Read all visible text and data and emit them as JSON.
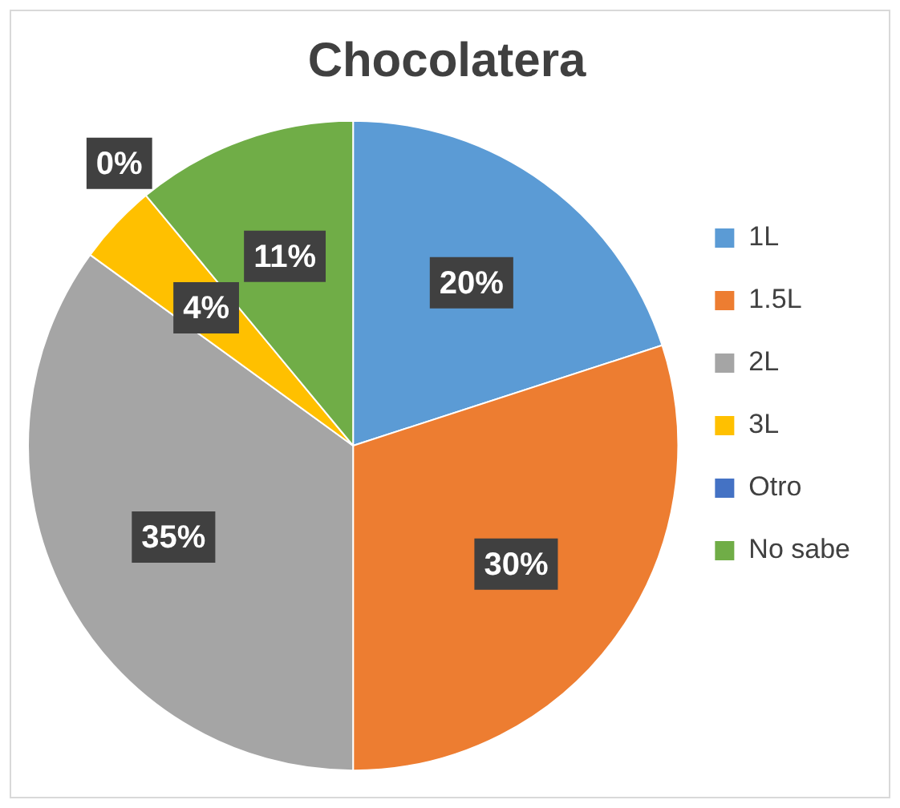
{
  "chart_data": {
    "type": "pie",
    "title": "Chocolatera",
    "categories": [
      "1L",
      "1.5L",
      "2L",
      "3L",
      "Otro",
      "No sabe"
    ],
    "values": [
      20,
      30,
      35,
      4,
      0,
      11
    ],
    "colors": [
      "#5b9bd5",
      "#ed7d31",
      "#a5a5a5",
      "#ffc000",
      "#4472c4",
      "#70ad47"
    ],
    "value_labels": [
      "20%",
      "30%",
      "35%",
      "4%",
      "0%",
      "11%"
    ],
    "legend": "right"
  }
}
